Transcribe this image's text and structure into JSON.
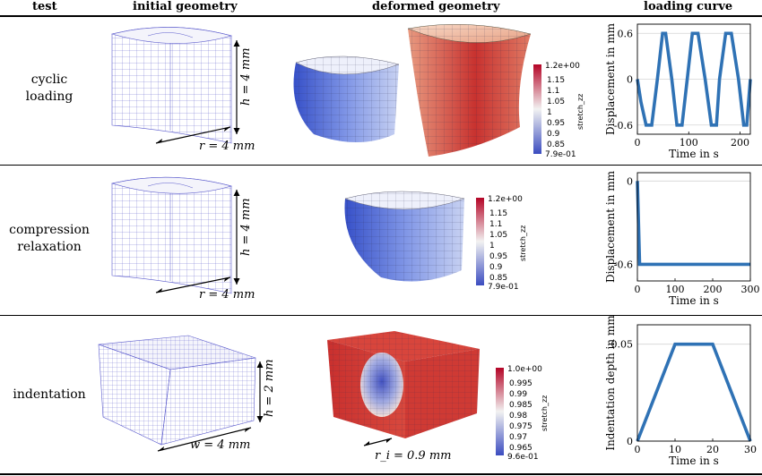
{
  "headers": {
    "test": "test",
    "initial": "initial geometry",
    "deformed": "deformed geometry",
    "loading": "loading curve"
  },
  "rows": [
    {
      "label_lines": [
        "cyclic",
        "loading"
      ],
      "dim1": "r = 4 mm",
      "dim2": "h = 4 mm",
      "colorbar": {
        "top": "1.2e+00",
        "ticks": [
          "1.15",
          "1.1",
          "1.05",
          "1",
          "0.95",
          "0.9",
          "0.85"
        ],
        "bottom": "7.9e-01",
        "title": "stretch_zz"
      }
    },
    {
      "label_lines": [
        "compression",
        "relaxation"
      ],
      "dim1": "r = 4 mm",
      "dim2": "h = 4 mm",
      "colorbar": {
        "top": "1.2e+00",
        "ticks": [
          "1.15",
          "1.1",
          "1.05",
          "1",
          "0.95",
          "0.9",
          "0.85"
        ],
        "bottom": "7.9e-01",
        "title": "stretch_zz"
      }
    },
    {
      "label_lines": [
        "indentation"
      ],
      "dim1": "w = 4 mm",
      "dim2": "h = 2 mm",
      "dim3": "r_i = 0.9 mm",
      "colorbar": {
        "top": "1.0e+00",
        "ticks": [
          "0.995",
          "0.99",
          "0.985",
          "0.98",
          "0.975",
          "0.97",
          "0.965"
        ],
        "bottom": "9.6e-01",
        "title": "stretch_zz"
      }
    }
  ],
  "colors": {
    "line": "#2f72b5",
    "red": "#c8322f",
    "blue": "#3b54c7",
    "mesh": "#5a5acc"
  },
  "chart_data": [
    {
      "type": "line",
      "xlabel": "Time in s",
      "ylabel": "Displacement in mm",
      "xticks": [
        "0",
        "100",
        "200"
      ],
      "yticks": [
        "0.6",
        "0",
        "-0.6"
      ],
      "xlim": [
        0,
        220
      ],
      "ylim": [
        -0.72,
        0.72
      ],
      "x": [
        0,
        7,
        17,
        28,
        39,
        49,
        55,
        67,
        77,
        87,
        97,
        107,
        118,
        132,
        144,
        154,
        160,
        172,
        183,
        197,
        207,
        213,
        220
      ],
      "y": [
        0,
        -0.3,
        -0.6,
        -0.6,
        0,
        0.6,
        0.6,
        0,
        -0.6,
        -0.6,
        0,
        0.6,
        0.6,
        0,
        -0.6,
        -0.6,
        0,
        0.6,
        0.6,
        0,
        -0.6,
        -0.6,
        0
      ],
      "grid": true
    },
    {
      "type": "line",
      "xlabel": "Time in s",
      "ylabel": "Displacement in mm",
      "xticks": [
        "0",
        "100",
        "200",
        "300"
      ],
      "yticks": [
        "0",
        "-0.6"
      ],
      "xlim": [
        0,
        300
      ],
      "ylim": [
        -0.72,
        0.06
      ],
      "x": [
        0,
        6,
        300
      ],
      "y": [
        0,
        -0.6,
        -0.6
      ],
      "grid": true
    },
    {
      "type": "line",
      "xlabel": "Time in s",
      "ylabel": "Indentation depth in mm",
      "xticks": [
        "0",
        "10",
        "20",
        "30"
      ],
      "yticks": [
        "0.05",
        "0"
      ],
      "xlim": [
        0,
        30
      ],
      "ylim": [
        0,
        0.06
      ],
      "x": [
        0,
        10,
        20,
        30
      ],
      "y": [
        0,
        0.05,
        0.05,
        0
      ],
      "grid": true
    }
  ]
}
